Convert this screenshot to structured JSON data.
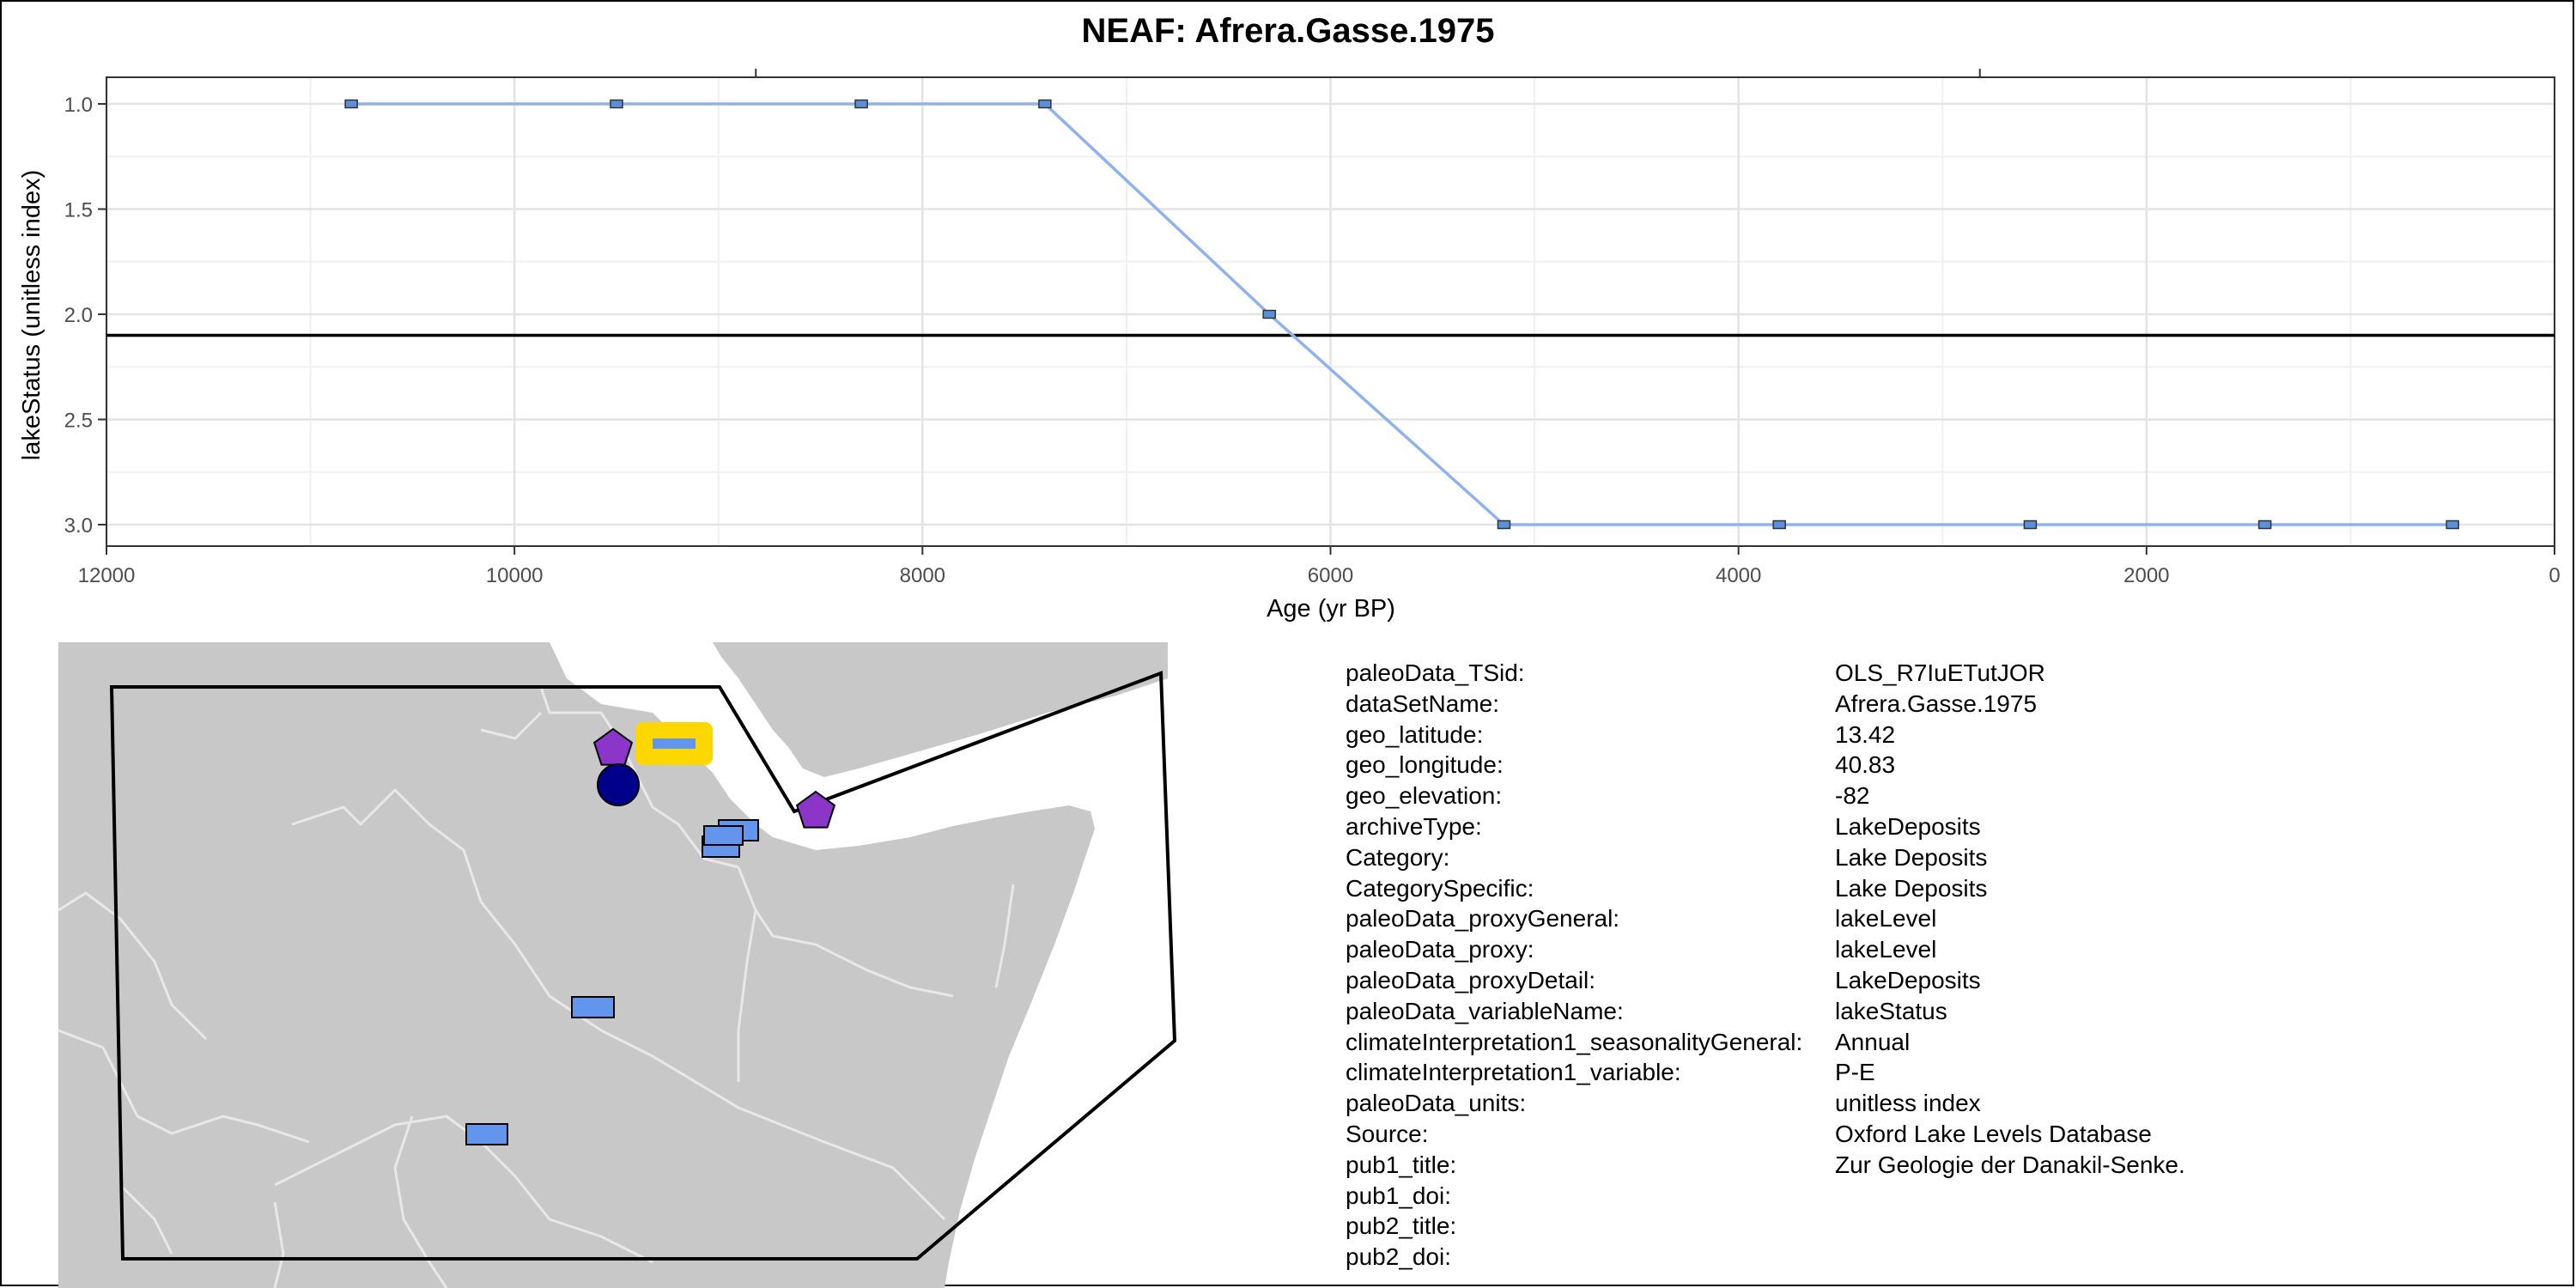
{
  "chart_data": {
    "type": "line",
    "title": "NEAF: Afrera.Gasse.1975",
    "xlabel": "Age (yr BP)",
    "ylabel": "lakeStatus (unitless index)",
    "xlim": [
      12000,
      0
    ],
    "ylim": [
      3.0,
      1.0
    ],
    "x_reversed": true,
    "y_reversed": true,
    "x_ticks": [
      12000,
      10000,
      8000,
      6000,
      4000,
      2000,
      0
    ],
    "x_tick_labels": [
      "12000",
      "10000",
      "8000",
      "6000",
      "4000",
      "2000",
      "0"
    ],
    "y_ticks": [
      1.0,
      1.5,
      2.0,
      2.5,
      3.0
    ],
    "y_tick_labels": [
      "1.0",
      "1.5",
      "2.0",
      "2.5",
      "3.0"
    ],
    "grid": true,
    "line_color": "#8fb2ee",
    "marker_color": "#5b8fd9",
    "reference_line": {
      "y": 2.1,
      "color": "#000000"
    },
    "series": [
      {
        "x": [
          10800,
          9500,
          8300,
          7400,
          6300,
          5150,
          3800,
          2570,
          1420,
          500
        ],
        "y": [
          1.0,
          1.0,
          1.0,
          1.0,
          2.0,
          3.0,
          3.0,
          3.0,
          3.0,
          3.0
        ]
      }
    ]
  },
  "map": {
    "land_color": "#c8c8c8",
    "border_color": "#e8e8e8",
    "polygon_color": "#000000",
    "markers": [
      {
        "shape": "pentagon",
        "color": "#8b35c9",
        "label": "site"
      },
      {
        "shape": "pentagon",
        "color": "#8b35c9",
        "label": "site"
      },
      {
        "shape": "circle",
        "color": "#00008b",
        "label": "site"
      },
      {
        "shape": "highlight-rect",
        "color": "#ffd700",
        "label": "current-site"
      },
      {
        "shape": "rect",
        "color": "#6495ed",
        "label": "site"
      },
      {
        "shape": "rect",
        "color": "#6495ed",
        "label": "site"
      },
      {
        "shape": "rect",
        "color": "#6495ed",
        "label": "site"
      },
      {
        "shape": "rect",
        "color": "#6495ed",
        "label": "site"
      },
      {
        "shape": "rect",
        "color": "#6495ed",
        "label": "site"
      }
    ]
  },
  "metadata": [
    {
      "key": "paleoData_TSid:",
      "value": "OLS_R7IuETutJOR"
    },
    {
      "key": "dataSetName:",
      "value": "Afrera.Gasse.1975"
    },
    {
      "key": "geo_latitude:",
      "value": "13.42"
    },
    {
      "key": "geo_longitude:",
      "value": "40.83"
    },
    {
      "key": "geo_elevation:",
      "value": "-82"
    },
    {
      "key": "archiveType:",
      "value": "LakeDeposits"
    },
    {
      "key": "Category:",
      "value": "Lake Deposits"
    },
    {
      "key": "CategorySpecific:",
      "value": "Lake Deposits"
    },
    {
      "key": "paleoData_proxyGeneral:",
      "value": "lakeLevel"
    },
    {
      "key": "paleoData_proxy:",
      "value": "lakeLevel"
    },
    {
      "key": "paleoData_proxyDetail:",
      "value": "LakeDeposits"
    },
    {
      "key": "paleoData_variableName:",
      "value": "lakeStatus"
    },
    {
      "key": "climateInterpretation1_seasonalityGeneral:",
      "value": "Annual"
    },
    {
      "key": "climateInterpretation1_variable:",
      "value": "P-E"
    },
    {
      "key": "paleoData_units:",
      "value": "unitless index"
    },
    {
      "key": "Source:",
      "value": "Oxford Lake Levels Database"
    },
    {
      "key": "pub1_title:",
      "value": "Zur Geologie der Danakil-Senke."
    },
    {
      "key": "pub1_doi:",
      "value": ""
    },
    {
      "key": "pub2_title:",
      "value": ""
    },
    {
      "key": "pub2_doi:",
      "value": ""
    }
  ]
}
